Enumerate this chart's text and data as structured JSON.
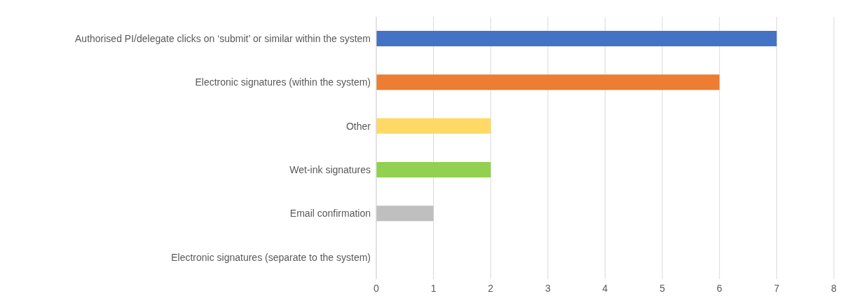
{
  "chart_data": {
    "type": "bar",
    "orientation": "horizontal",
    "categories": [
      "Authorised PI/delegate clicks on ‘submit’ or similar within the system",
      "Electronic signatures (within the system)",
      "Other",
      "Wet-ink signatures",
      "Email confirmation",
      "Electronic signatures (separate to the system)"
    ],
    "values": [
      7,
      6,
      2,
      2,
      1,
      0
    ],
    "colors": [
      "#4472c4",
      "#ed7d31",
      "#ffd966",
      "#92d050",
      "#bfbfbf",
      "#5b9bd5"
    ],
    "xlim": [
      0,
      8
    ],
    "xticks": [
      0,
      1,
      2,
      3,
      4,
      5,
      6,
      7,
      8
    ],
    "grid": "x"
  }
}
